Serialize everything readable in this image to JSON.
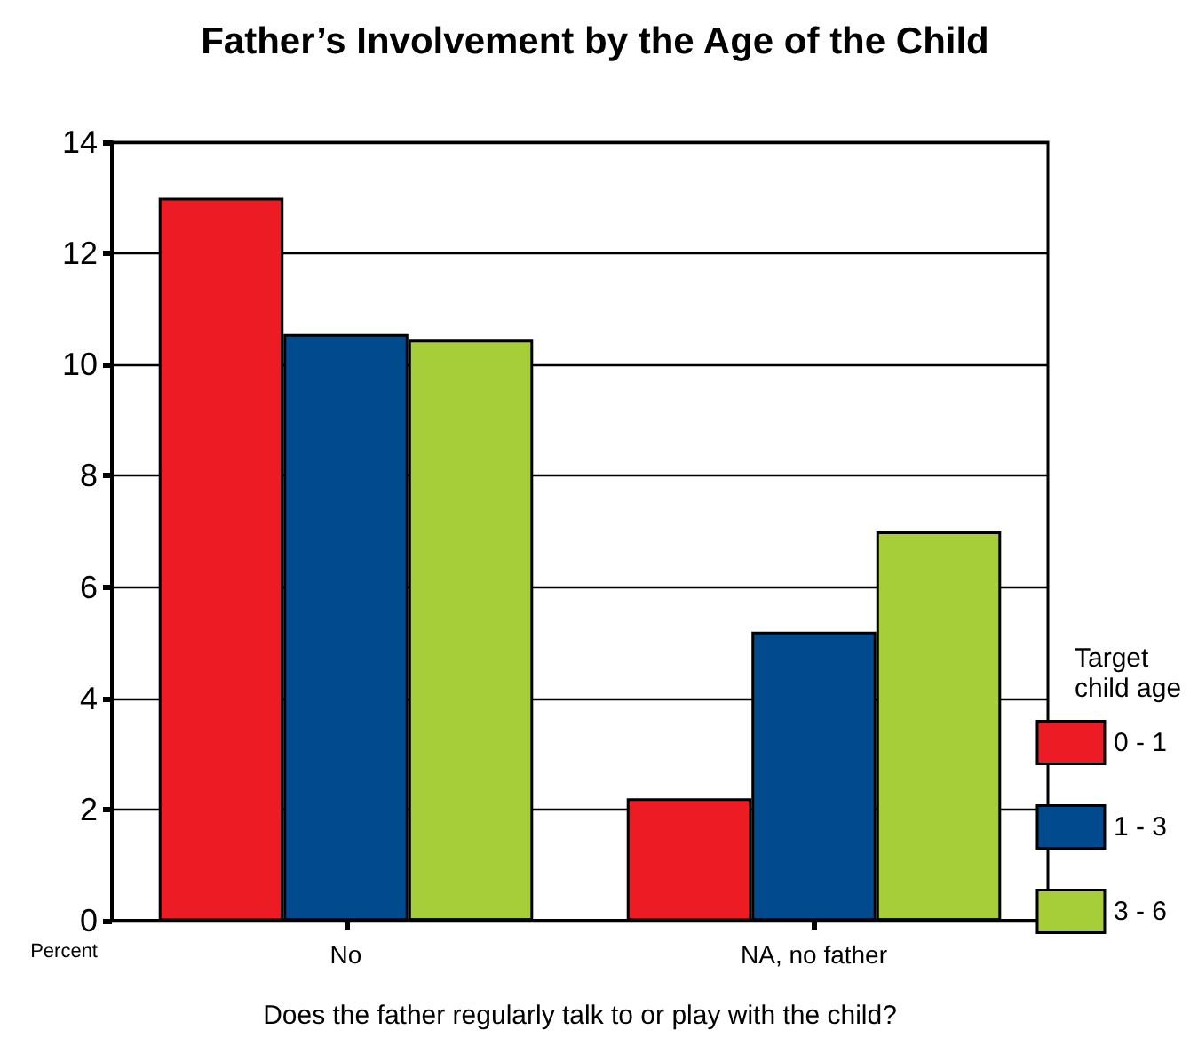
{
  "chart_data": {
    "type": "bar",
    "title": "Father’s Involvement by the Age of the Child",
    "xlabel": "Does the father regularly talk to or play with the child?",
    "ylabel": "Percent",
    "legend_title": "Target\nchild age",
    "categories": [
      "No",
      "NA, no father"
    ],
    "series": [
      {
        "name": "0 - 1",
        "color": "#ed1c24",
        "values": [
          13,
          2.2
        ]
      },
      {
        "name": "1 - 3",
        "color": "#004a8d",
        "values": [
          10.55,
          5.2
        ]
      },
      {
        "name": "3 - 6",
        "color": "#a6ce39",
        "values": [
          10.45,
          7.0
        ]
      }
    ],
    "ylim": [
      0,
      14
    ],
    "yticks": [
      0,
      2,
      4,
      6,
      8,
      10,
      12,
      14
    ],
    "grid": "y",
    "legend": "right"
  }
}
